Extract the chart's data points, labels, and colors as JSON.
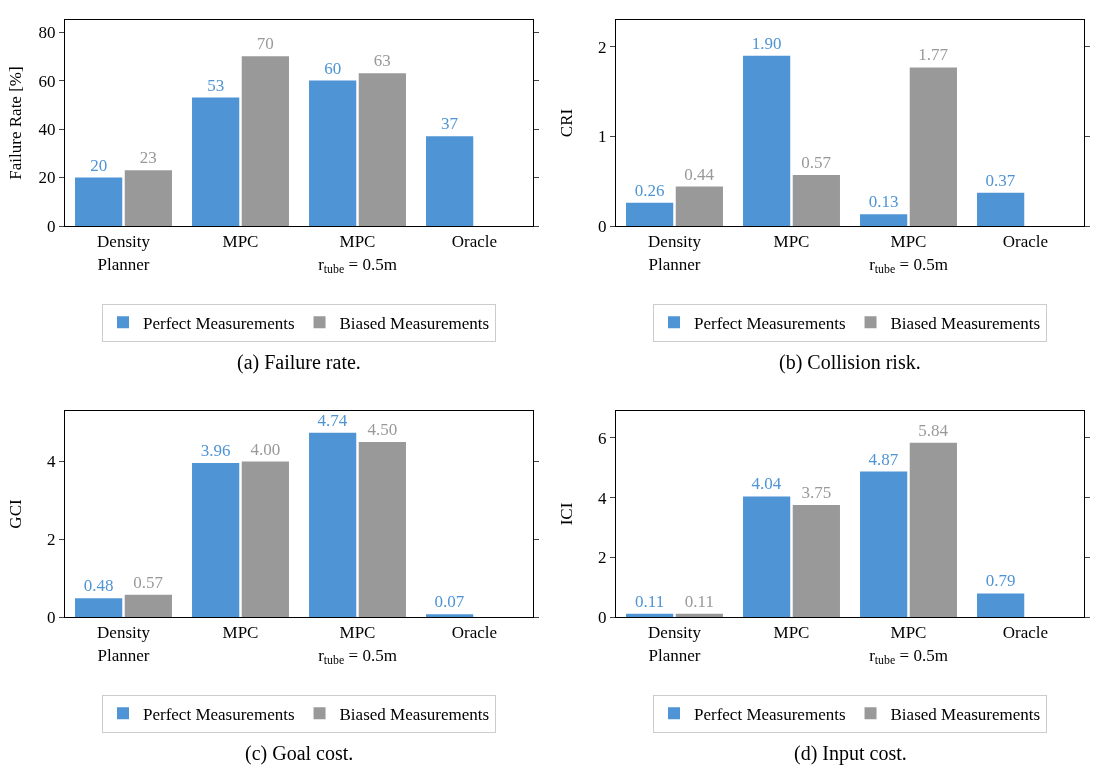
{
  "chart_data": [
    {
      "type": "bar",
      "ylabel": "Failure Rate [%]",
      "categories": [
        "Density\nPlanner",
        "MPC",
        "MPC\nr$_{tube}$ = 0.5m",
        "Oracle"
      ],
      "ylim": [
        0,
        85
      ],
      "yticks": [
        0,
        20,
        40,
        60,
        80
      ],
      "grid": false,
      "legend": "bottom",
      "annotations": [
        "(a) Failure rate."
      ],
      "series": [
        {
          "name": "Perfect Measurements",
          "color": "#4f94d4",
          "values": [
            20,
            53,
            60,
            37
          ],
          "value_labels": [
            "20",
            "53",
            "60",
            "37"
          ]
        },
        {
          "name": "Biased Measurements",
          "color": "#999999",
          "values": [
            23,
            70,
            63,
            null
          ],
          "value_labels": [
            "23",
            "70",
            "63",
            null
          ]
        }
      ]
    },
    {
      "type": "bar",
      "ylabel": "CRI",
      "categories": [
        "Density\nPlanner",
        "MPC",
        "MPC\nr$_{tube}$ = 0.5m",
        "Oracle"
      ],
      "ylim": [
        0,
        2.3
      ],
      "yticks": [
        0,
        1,
        2
      ],
      "grid": false,
      "legend": "bottom",
      "annotations": [
        "(b) Collision risk."
      ],
      "series": [
        {
          "name": "Perfect Measurements",
          "color": "#4f94d4",
          "values": [
            0.26,
            1.9,
            0.13,
            0.37
          ],
          "value_labels": [
            "0.26",
            "1.90",
            "0.13",
            "0.37"
          ]
        },
        {
          "name": "Biased Measurements",
          "color": "#999999",
          "values": [
            0.44,
            0.57,
            1.77,
            null
          ],
          "value_labels": [
            "0.44",
            "0.57",
            "1.77",
            null
          ]
        }
      ]
    },
    {
      "type": "bar",
      "ylabel": "GCI",
      "categories": [
        "Density\nPlanner",
        "MPC",
        "MPC\nr$_{tube}$ = 0.5m",
        "Oracle"
      ],
      "ylim": [
        0,
        5.3
      ],
      "yticks": [
        0,
        2,
        4
      ],
      "grid": false,
      "legend": "bottom",
      "annotations": [
        "(c) Goal cost."
      ],
      "series": [
        {
          "name": "Perfect Measurements",
          "color": "#4f94d4",
          "values": [
            0.48,
            3.96,
            4.74,
            0.07
          ],
          "value_labels": [
            "0.48",
            "3.96",
            "4.74",
            "0.07"
          ]
        },
        {
          "name": "Biased Measurements",
          "color": "#999999",
          "values": [
            0.57,
            4.0,
            4.5,
            null
          ],
          "value_labels": [
            "0.57",
            "4.00",
            "4.50",
            null
          ]
        }
      ]
    },
    {
      "type": "bar",
      "ylabel": "ICI",
      "categories": [
        "Density\nPlanner",
        "MPC",
        "MPC\nr$_{tube}$ = 0.5m",
        "Oracle"
      ],
      "ylim": [
        0,
        6.9
      ],
      "yticks": [
        0,
        2,
        4,
        6
      ],
      "grid": false,
      "legend": "bottom",
      "annotations": [
        "(d) Input cost."
      ],
      "series": [
        {
          "name": "Perfect Measurements",
          "color": "#4f94d4",
          "values": [
            0.11,
            4.04,
            4.87,
            0.79
          ],
          "value_labels": [
            "0.11",
            "4.04",
            "4.87",
            "0.79"
          ]
        },
        {
          "name": "Biased Measurements",
          "color": "#999999",
          "values": [
            0.11,
            3.75,
            5.84,
            null
          ],
          "value_labels": [
            "0.11",
            "3.75",
            "5.84",
            null
          ]
        }
      ]
    }
  ]
}
